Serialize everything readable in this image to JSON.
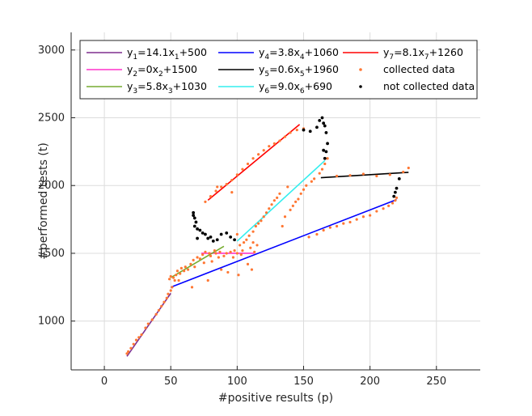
{
  "chart_data": {
    "type": "scatter",
    "xlabel": "#positive results (p)",
    "ylabel": "#performed tests (t)",
    "xlim": [
      -25,
      283
    ],
    "ylim": [
      640,
      3130
    ],
    "xticks": [
      0,
      50,
      100,
      150,
      200,
      250
    ],
    "yticks": [
      1000,
      1500,
      2000,
      2500,
      3000
    ],
    "grid": true,
    "legend_position": "top",
    "fit_lines": [
      {
        "name_parts": [
          "y",
          "1",
          "=14.1x",
          "1",
          "+500"
        ],
        "color": "#7e2f8e",
        "slope": 14.1,
        "intercept": 500,
        "x_range": [
          17,
          50
        ]
      },
      {
        "name_parts": [
          "y",
          "2",
          "=0x",
          "2",
          "+1500"
        ],
        "color": "#ff33cc",
        "slope": 0,
        "intercept": 1500,
        "x_range": [
          73,
          113
        ]
      },
      {
        "name_parts": [
          "y",
          "3",
          "=5.8x",
          "3",
          "+1030"
        ],
        "color": "#77ac30",
        "slope": 5.8,
        "intercept": 1030,
        "x_range": [
          50,
          90
        ]
      },
      {
        "name_parts": [
          "y",
          "4",
          "=3.8x",
          "4",
          "+1060"
        ],
        "color": "#0000ff",
        "slope": 3.8,
        "intercept": 1060,
        "x_range": [
          50,
          220
        ]
      },
      {
        "name_parts": [
          "y",
          "5",
          "=0.6x",
          "5",
          "+1960"
        ],
        "color": "#000000",
        "slope": 0.6,
        "intercept": 1960,
        "x_range": [
          163,
          229
        ]
      },
      {
        "name_parts": [
          "y",
          "6",
          "=9.0x",
          "6",
          "+690"
        ],
        "color": "#33eeee",
        "slope": 9.0,
        "intercept": 690,
        "x_range": [
          100,
          166
        ]
      },
      {
        "name_parts": [
          "y",
          "7",
          "=8.1x",
          "7",
          "+1260"
        ],
        "color": "#ff0000",
        "slope": 8.1,
        "intercept": 1260,
        "x_range": [
          78,
          147
        ]
      }
    ],
    "scatter_series": [
      {
        "name": "collected data",
        "color": "#ff7733",
        "points": [
          [
            17,
            760
          ],
          [
            18,
            775
          ],
          [
            20,
            800
          ],
          [
            22,
            830
          ],
          [
            24,
            860
          ],
          [
            26,
            880
          ],
          [
            28,
            900
          ],
          [
            31,
            950
          ],
          [
            33,
            980
          ],
          [
            36,
            1010
          ],
          [
            39,
            1050
          ],
          [
            41,
            1080
          ],
          [
            43,
            1110
          ],
          [
            45,
            1140
          ],
          [
            47,
            1170
          ],
          [
            48,
            1200
          ],
          [
            50,
            1225
          ],
          [
            51,
            1250
          ],
          [
            49,
            1310
          ],
          [
            50,
            1330
          ],
          [
            52,
            1320
          ],
          [
            53,
            1300
          ],
          [
            54,
            1340
          ],
          [
            55,
            1370
          ],
          [
            56,
            1300
          ],
          [
            57,
            1350
          ],
          [
            58,
            1390
          ],
          [
            60,
            1370
          ],
          [
            61,
            1400
          ],
          [
            63,
            1380
          ],
          [
            65,
            1420
          ],
          [
            66,
            1250
          ],
          [
            67,
            1450
          ],
          [
            68,
            1400
          ],
          [
            70,
            1470
          ],
          [
            72,
            1460
          ],
          [
            74,
            1490
          ],
          [
            75,
            1430
          ],
          [
            76,
            1510
          ],
          [
            78,
            1300
          ],
          [
            79,
            1500
          ],
          [
            80,
            1480
          ],
          [
            81,
            1440
          ],
          [
            83,
            1520
          ],
          [
            84,
            1500
          ],
          [
            86,
            1470
          ],
          [
            87,
            1510
          ],
          [
            88,
            1380
          ],
          [
            90,
            1480
          ],
          [
            92,
            1500
          ],
          [
            93,
            1360
          ],
          [
            95,
            1510
          ],
          [
            97,
            1470
          ],
          [
            98,
            1520
          ],
          [
            100,
            1500
          ],
          [
            101,
            1340
          ],
          [
            102,
            1560
          ],
          [
            103,
            1490
          ],
          [
            104,
            1520
          ],
          [
            105,
            1580
          ],
          [
            107,
            1600
          ],
          [
            108,
            1420
          ],
          [
            109,
            1630
          ],
          [
            110,
            1540
          ],
          [
            111,
            1380
          ],
          [
            112,
            1660
          ],
          [
            113,
            1510
          ],
          [
            114,
            1700
          ],
          [
            115,
            1560
          ],
          [
            116,
            1720
          ],
          [
            118,
            1740
          ],
          [
            120,
            1770
          ],
          [
            122,
            1800
          ],
          [
            124,
            1830
          ],
          [
            126,
            1860
          ],
          [
            128,
            1890
          ],
          [
            130,
            1910
          ],
          [
            132,
            1940
          ],
          [
            134,
            1700
          ],
          [
            136,
            1770
          ],
          [
            138,
            1990
          ],
          [
            140,
            1820
          ],
          [
            142,
            1850
          ],
          [
            144,
            1880
          ],
          [
            146,
            1900
          ],
          [
            148,
            1940
          ],
          [
            150,
            1970
          ],
          [
            152,
            2000
          ],
          [
            154,
            1620
          ],
          [
            156,
            2030
          ],
          [
            158,
            2050
          ],
          [
            160,
            1640
          ],
          [
            162,
            2090
          ],
          [
            164,
            2120
          ],
          [
            166,
            2160
          ],
          [
            168,
            2200
          ],
          [
            165,
            1670
          ],
          [
            170,
            1690
          ],
          [
            175,
            1700
          ],
          [
            180,
            1720
          ],
          [
            185,
            1730
          ],
          [
            190,
            1750
          ],
          [
            195,
            1770
          ],
          [
            200,
            1780
          ],
          [
            205,
            1810
          ],
          [
            210,
            1830
          ],
          [
            214,
            1850
          ],
          [
            217,
            1870
          ],
          [
            219,
            1890
          ],
          [
            220,
            1910
          ],
          [
            225,
            2100
          ],
          [
            229,
            2130
          ],
          [
            215,
            2080
          ],
          [
            205,
            2070
          ],
          [
            195,
            2085
          ],
          [
            185,
            2075
          ],
          [
            175,
            2070
          ],
          [
            76,
            1880
          ],
          [
            80,
            1920
          ],
          [
            84,
            1960
          ],
          [
            88,
            1990
          ],
          [
            92,
            2010
          ],
          [
            96,
            2040
          ],
          [
            100,
            2080
          ],
          [
            104,
            2120
          ],
          [
            108,
            2160
          ],
          [
            112,
            2200
          ],
          [
            116,
            2230
          ],
          [
            120,
            2260
          ],
          [
            124,
            2290
          ],
          [
            128,
            2310
          ],
          [
            132,
            2330
          ],
          [
            136,
            2360
          ],
          [
            140,
            2390
          ],
          [
            145,
            2410
          ],
          [
            150,
            2420
          ],
          [
            85,
            1990
          ],
          [
            96,
            1950
          ],
          [
            100,
            1640
          ],
          [
            112,
            1580
          ]
        ]
      },
      {
        "name": "not collected data",
        "color": "#000000",
        "points": [
          [
            67,
            1800
          ],
          [
            67,
            1780
          ],
          [
            68,
            1760
          ],
          [
            69,
            1730
          ],
          [
            68,
            1700
          ],
          [
            70,
            1680
          ],
          [
            72,
            1670
          ],
          [
            74,
            1650
          ],
          [
            76,
            1640
          ],
          [
            78,
            1610
          ],
          [
            70,
            1610
          ],
          [
            80,
            1620
          ],
          [
            82,
            1590
          ],
          [
            85,
            1600
          ],
          [
            88,
            1640
          ],
          [
            92,
            1650
          ],
          [
            95,
            1620
          ],
          [
            98,
            1600
          ],
          [
            150,
            2410
          ],
          [
            155,
            2400
          ],
          [
            160,
            2430
          ],
          [
            162,
            2480
          ],
          [
            164,
            2500
          ],
          [
            165,
            2460
          ],
          [
            166,
            2440
          ],
          [
            167,
            2390
          ],
          [
            168,
            2310
          ],
          [
            167,
            2250
          ],
          [
            166,
            2200
          ],
          [
            165,
            2260
          ],
          [
            222,
            2050
          ],
          [
            220,
            1980
          ],
          [
            219,
            1950
          ],
          [
            218,
            1920
          ]
        ]
      }
    ]
  }
}
